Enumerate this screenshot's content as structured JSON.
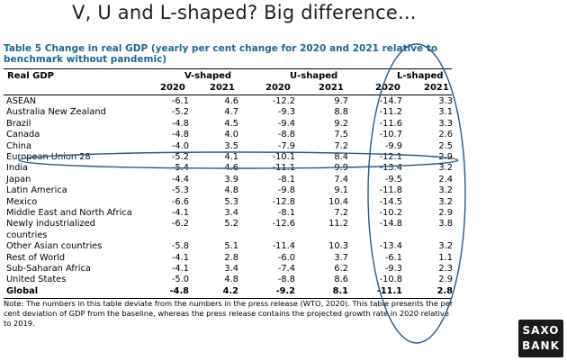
{
  "slide_title": "V, U and L-shaped? Big difference...",
  "table": {
    "title": "Table 5 Change in real GDP (yearly per cent change for 2020 and 2021 relative to benchmark without pandemic)",
    "first_col_header": "Real GDP",
    "groups": [
      "V-shaped",
      "U-shaped",
      "L-shaped"
    ],
    "years": [
      "2020",
      "2021",
      "2020",
      "2021",
      "2020",
      "2021"
    ],
    "rows": [
      {
        "name": "ASEAN",
        "values": [
          "-6.1",
          "4.6",
          "-12.2",
          "9.7",
          "-14.7",
          "3.3"
        ]
      },
      {
        "name": "Australia New Zealand",
        "values": [
          "-5.2",
          "4.7",
          "-9.3",
          "8.8",
          "-11.2",
          "3.1"
        ]
      },
      {
        "name": "Brazil",
        "values": [
          "-4.8",
          "4.5",
          "-9.4",
          "9.2",
          "-11.6",
          "3.3"
        ]
      },
      {
        "name": "Canada",
        "values": [
          "-4.8",
          "4.0",
          "-8.8",
          "7.5",
          "-10.7",
          "2.6"
        ]
      },
      {
        "name": "China",
        "values": [
          "-4.0",
          "3.5",
          "-7.9",
          "7.2",
          "-9.9",
          "2.5"
        ]
      },
      {
        "name": "European Union 28",
        "values": [
          "-5.2",
          "4.1",
          "-10.1",
          "8.4",
          "-12.1",
          "2.9"
        ]
      },
      {
        "name": "India",
        "values": [
          "-5.4",
          "4.6",
          "-11.1",
          "9.9",
          "-13.4",
          "3.2"
        ]
      },
      {
        "name": "Japan",
        "values": [
          "-4.4",
          "3.9",
          "-8.1",
          "7.4",
          "-9.5",
          "2.4"
        ]
      },
      {
        "name": "Latin America",
        "values": [
          "-5.3",
          "4.8",
          "-9.8",
          "9.1",
          "-11.8",
          "3.2"
        ]
      },
      {
        "name": "Mexico",
        "values": [
          "-6.6",
          "5.3",
          "-12.8",
          "10.4",
          "-14.5",
          "3.2"
        ]
      },
      {
        "name": "Middle East and North Africa",
        "values": [
          "-4.1",
          "3.4",
          "-8.1",
          "7.2",
          "-10.2",
          "2.9"
        ]
      },
      {
        "name": "Newly industrialized",
        "name2": "countries",
        "values": [
          "-6.2",
          "5.2",
          "-12.6",
          "11.2",
          "-14.8",
          "3.8"
        ]
      },
      {
        "name": "Other Asian countries",
        "values": [
          "-5.8",
          "5.1",
          "-11.4",
          "10.3",
          "-13.4",
          "3.2"
        ]
      },
      {
        "name": "Rest of World",
        "values": [
          "-4.1",
          "2.8",
          "-6.0",
          "3.7",
          "-6.1",
          "1.1"
        ]
      },
      {
        "name": "Sub-Saharan Africa",
        "values": [
          "-4.1",
          "3.4",
          "-7.4",
          "6.2",
          "-9.3",
          "2.3"
        ]
      },
      {
        "name": "United States",
        "values": [
          "-5.0",
          "4.8",
          "-8.8",
          "8.6",
          "-10.8",
          "2.9"
        ]
      },
      {
        "name": "Global",
        "values": [
          "-4.8",
          "4.2",
          "-9.2",
          "8.1",
          "-11.1",
          "2.8"
        ],
        "bold": true
      }
    ],
    "note": "Note: The numbers in this table deviate from the numbers in the press release (WTO, 2020). This table presents the per cent deviation of GDP from the baseline, whereas the press release contains the projected growth rate in 2020 relative to 2019."
  },
  "logo": {
    "line1": "SAXO",
    "line2": "BANK"
  },
  "colors": {
    "title_blue": "#1e6a8c",
    "annotation_blue": "#2b5a80"
  }
}
